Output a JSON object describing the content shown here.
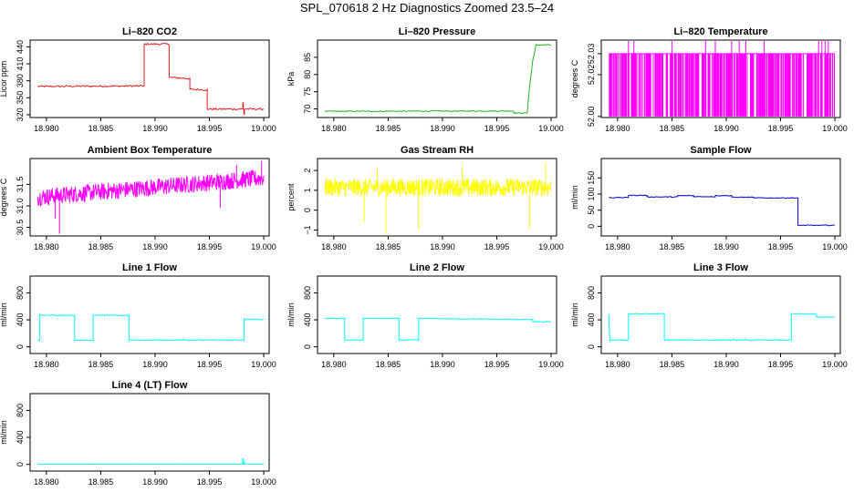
{
  "figure_title": "SPL_070618  2 Hz Diagnostics Zoomed 23.5–24",
  "chart_data": [
    {
      "type": "line",
      "title": "Li–820 CO2",
      "ylabel": "Licor ppm",
      "color": "#e31a1c",
      "xlim": [
        18.9785,
        19.0005
      ],
      "ylim": [
        315,
        452
      ],
      "xticks": [
        18.98,
        18.985,
        18.99,
        18.995,
        19.0
      ],
      "xtick_labels": [
        "18.980",
        "18.985",
        "18.990",
        "18.995",
        "19.000"
      ],
      "yticks": [
        320,
        350,
        380,
        410,
        440
      ],
      "ytick_labels": [
        "320",
        "350",
        "380",
        "410",
        "440"
      ],
      "noise": 1.5,
      "x": [
        18.9792,
        18.989,
        18.989,
        18.9913,
        18.9913,
        18.9932,
        18.9932,
        18.9948,
        18.9948,
        19.0
      ],
      "y": [
        370,
        371,
        445,
        445,
        386,
        384,
        365,
        364,
        330,
        330
      ],
      "spikes": [
        [
          18.9981,
          342
        ],
        [
          18.9982,
          320
        ]
      ]
    },
    {
      "type": "line",
      "title": "Li–820 Pressure",
      "ylabel": "kPa",
      "color": "#1db81d",
      "xlim": [
        18.9785,
        19.0005
      ],
      "ylim": [
        67.5,
        90
      ],
      "xticks": [
        18.98,
        18.985,
        18.99,
        18.995,
        19.0
      ],
      "xtick_labels": [
        "18.980",
        "18.985",
        "18.990",
        "18.995",
        "19.000"
      ],
      "yticks": [
        70,
        75,
        80,
        85
      ],
      "ytick_labels": [
        "70",
        "75",
        "80",
        "85"
      ],
      "noise": 0.15,
      "x": [
        18.9792,
        18.9965,
        18.9966,
        18.9978,
        18.998,
        18.9982,
        18.9983,
        18.9985,
        18.9986,
        19.0
      ],
      "y": [
        69.3,
        69.4,
        68.8,
        68.8,
        76,
        81,
        84,
        87,
        88.6,
        88.6
      ]
    },
    {
      "type": "bars",
      "title": "Li–820 Temperature",
      "ylabel": "degrees C",
      "color": "#ff00ff",
      "xlim": [
        18.9785,
        19.0005
      ],
      "ylim": [
        51.9995,
        52.0365
      ],
      "xticks": [
        18.98,
        18.985,
        18.99,
        18.995,
        19.0
      ],
      "xtick_labels": [
        "18.980",
        "18.985",
        "18.990",
        "18.995",
        "19.000"
      ],
      "yticks": [
        52.0,
        52.02,
        52.03
      ],
      "ytick_labels": [
        "52.00",
        "52.02",
        "52.03"
      ],
      "base": 52.0,
      "level": 52.03,
      "high": 52.06,
      "high_x": [
        18.981,
        18.9815,
        18.985,
        18.9881,
        18.989,
        18.9905,
        18.9912,
        18.9918,
        18.9935,
        18.9985,
        18.9988,
        18.9991,
        18.9994
      ],
      "count": 340
    },
    {
      "type": "noise",
      "title": "Ambient Box Temperature",
      "ylabel": "degrees C",
      "color": "#ff00ff",
      "xlim": [
        18.9785,
        19.0005
      ],
      "ylim": [
        30.3,
        32.1
      ],
      "xticks": [
        18.98,
        18.985,
        18.99,
        18.995,
        19.0
      ],
      "xtick_labels": [
        "18.980",
        "18.985",
        "18.990",
        "18.995",
        "19.000"
      ],
      "yticks": [
        30.5,
        31.0,
        31.5
      ],
      "ytick_labels": [
        "30.5",
        "31.0",
        "31.5"
      ],
      "mean_start": 31.2,
      "mean_end": 31.65,
      "amp": 0.2,
      "outliers": [
        [
          18.9812,
          30.35
        ],
        [
          18.9808,
          30.7
        ],
        [
          18.996,
          30.95
        ],
        [
          18.9998,
          32.05
        ],
        [
          18.9975,
          31.95
        ]
      ]
    },
    {
      "type": "noise",
      "title": "Gas Stream RH",
      "ylabel": "percent",
      "color": "#ffff00",
      "xlim": [
        18.9785,
        19.0005
      ],
      "ylim": [
        -1.3,
        2.6
      ],
      "xticks": [
        18.98,
        18.985,
        18.99,
        18.995,
        19.0
      ],
      "xtick_labels": [
        "18.980",
        "18.985",
        "18.990",
        "18.995",
        "19.000"
      ],
      "yticks": [
        -1,
        0,
        1,
        2
      ],
      "ytick_labels": [
        "−1",
        "0",
        "1",
        "2"
      ],
      "mean_start": 1.15,
      "mean_end": 1.15,
      "amp": 0.45,
      "outliers": [
        [
          18.9848,
          -1.2
        ],
        [
          18.9878,
          -1.0
        ],
        [
          18.9828,
          -0.6
        ],
        [
          18.998,
          -0.9
        ],
        [
          18.9918,
          2.2
        ],
        [
          18.9995,
          2.4
        ],
        [
          18.984,
          2.1
        ]
      ]
    },
    {
      "type": "line",
      "title": "Sample Flow",
      "ylabel": "ml/min",
      "color": "#0000cd",
      "xlim": [
        18.9785,
        19.0005
      ],
      "ylim": [
        -30,
        210
      ],
      "xticks": [
        18.98,
        18.985,
        18.99,
        18.995,
        19.0
      ],
      "xtick_labels": [
        "18.980",
        "18.985",
        "18.990",
        "18.995",
        "19.000"
      ],
      "yticks": [
        0,
        50,
        100,
        150
      ],
      "ytick_labels": [
        "0",
        "50",
        "100",
        "150"
      ],
      "noise": 1.2,
      "x": [
        18.9792,
        18.981,
        18.981,
        18.9827,
        18.9827,
        18.9855,
        18.9855,
        18.987,
        18.987,
        18.989,
        18.989,
        18.9905,
        18.9905,
        18.9925,
        18.9925,
        18.9966,
        18.9966,
        19.0
      ],
      "y": [
        89,
        89,
        96,
        96,
        91,
        91,
        95,
        95,
        92,
        92,
        95,
        95,
        90,
        90,
        88,
        88,
        3,
        3
      ]
    },
    {
      "type": "line",
      "title": "Line 1 Flow",
      "ylabel": "ml/min",
      "color": "#00ffff",
      "xlim": [
        18.9785,
        19.0005
      ],
      "ylim": [
        -100,
        1050
      ],
      "xticks": [
        18.98,
        18.985,
        18.99,
        18.995,
        19.0
      ],
      "xtick_labels": [
        "18.980",
        "18.985",
        "18.990",
        "18.995",
        "19.000"
      ],
      "yticks": [
        0,
        400,
        800
      ],
      "ytick_labels": [
        "0",
        "400",
        "800"
      ],
      "noise": 6,
      "x": [
        18.9792,
        18.9794,
        18.9794,
        18.9826,
        18.9826,
        18.9843,
        18.9843,
        18.9876,
        18.9876,
        18.9982,
        18.9982,
        19.0
      ],
      "y": [
        100,
        100,
        470,
        465,
        95,
        95,
        470,
        465,
        100,
        100,
        410,
        405
      ]
    },
    {
      "type": "line",
      "title": "Line 2 Flow",
      "ylabel": "ml/min",
      "color": "#00ffff",
      "xlim": [
        18.9785,
        19.0005
      ],
      "ylim": [
        -100,
        1050
      ],
      "xticks": [
        18.98,
        18.985,
        18.99,
        18.995,
        19.0
      ],
      "xtick_labels": [
        "18.980",
        "18.985",
        "18.990",
        "18.995",
        "19.000"
      ],
      "yticks": [
        0,
        400,
        800
      ],
      "ytick_labels": [
        "0",
        "400",
        "800"
      ],
      "noise": 6,
      "x": [
        18.9792,
        18.981,
        18.981,
        18.9827,
        18.9827,
        18.986,
        18.986,
        18.9878,
        18.9878,
        18.9983,
        18.9983,
        19.0
      ],
      "y": [
        420,
        420,
        100,
        100,
        420,
        420,
        100,
        100,
        420,
        405,
        370,
        370
      ]
    },
    {
      "type": "line",
      "title": "Line 3 Flow",
      "ylabel": "ml/min",
      "color": "#00ffff",
      "xlim": [
        18.9785,
        19.0005
      ],
      "ylim": [
        -100,
        1050
      ],
      "xticks": [
        18.98,
        18.985,
        18.99,
        18.995,
        19.0
      ],
      "xtick_labels": [
        "18.980",
        "18.985",
        "18.990",
        "18.995",
        "19.000"
      ],
      "yticks": [
        0,
        400,
        800
      ],
      "ytick_labels": [
        "0",
        "400",
        "800"
      ],
      "noise": 6,
      "x": [
        18.9792,
        18.9793,
        18.9793,
        18.981,
        18.981,
        18.9843,
        18.9843,
        18.996,
        18.996,
        18.9983,
        18.9983,
        19.0
      ],
      "y": [
        480,
        100,
        100,
        100,
        490,
        490,
        100,
        100,
        490,
        485,
        440,
        440
      ]
    },
    {
      "type": "line",
      "title": "Line 4 (LT) Flow",
      "ylabel": "ml/min",
      "color": "#00ffff",
      "xlim": [
        18.9785,
        19.0005
      ],
      "ylim": [
        -100,
        1050
      ],
      "xticks": [
        18.98,
        18.985,
        18.99,
        18.995,
        19.0
      ],
      "xtick_labels": [
        "18.980",
        "18.985",
        "18.990",
        "18.995",
        "19.000"
      ],
      "yticks": [
        0,
        400,
        800
      ],
      "ytick_labels": [
        "0",
        "400",
        "800"
      ],
      "noise": 1,
      "x": [
        18.9792,
        19.0
      ],
      "y": [
        3,
        3
      ],
      "spikes": [
        [
          18.9981,
          90
        ],
        [
          18.9982,
          40
        ]
      ]
    }
  ]
}
